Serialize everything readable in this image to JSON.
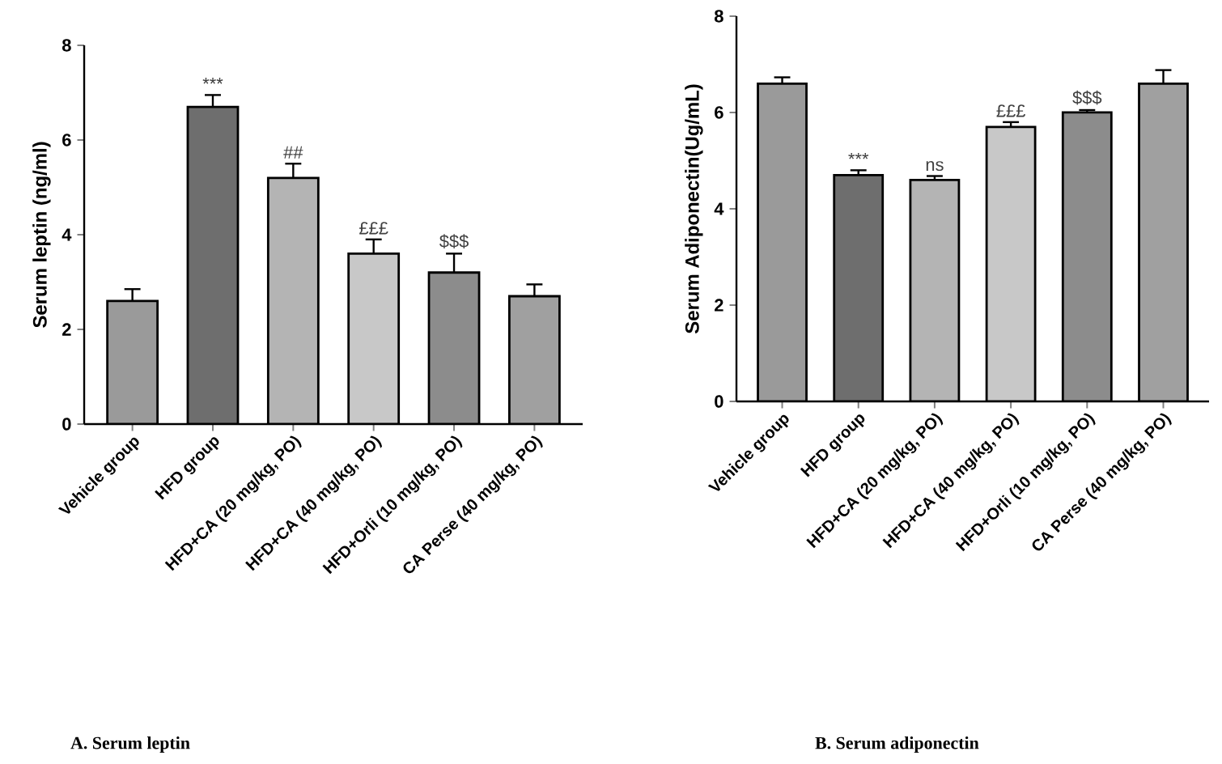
{
  "chart_data": [
    {
      "type": "bar",
      "ylabel": "Serum leptin (ng/ml)",
      "categories": [
        "Vehicle group",
        "HFD group",
        "HFD+CA (20 mg/kg, PO)",
        "HFD+CA (40 mg/kg, PO)",
        "HFD+Orli (10 mg/kg, PO)",
        "CA Perse (40 mg/kg, PO)"
      ],
      "values": [
        2.6,
        6.7,
        5.2,
        3.6,
        3.2,
        2.7
      ],
      "errors": [
        0.25,
        0.25,
        0.3,
        0.3,
        0.4,
        0.25
      ],
      "colors": [
        "#9a9a9a",
        "#6e6e6e",
        "#b4b4b4",
        "#c8c8c8",
        "#8c8c8c",
        "#a0a0a0"
      ],
      "ylim": [
        0,
        8
      ],
      "yticks": [
        0,
        2,
        4,
        6,
        8
      ],
      "grid": false,
      "annotations": [
        {
          "text": "***",
          "x": "HFD group",
          "y": 6.7
        },
        {
          "text": "##",
          "x": "HFD+CA (20 mg/kg, PO)",
          "y": 5.2
        },
        {
          "text": "£££",
          "x": "HFD+CA (40 mg/kg, PO)",
          "y": 3.6
        },
        {
          "text": "$$$",
          "x": "HFD+Orli (10 mg/kg, PO)",
          "y": 3.2
        },
        "A.  Serum leptin"
      ]
    },
    {
      "type": "bar",
      "ylabel": "Serum Adiponectin(Ug/mL)",
      "categories": [
        "Vehicle group",
        "HFD group",
        "HFD+CA (20 mg/kg, PO)",
        "HFD+CA (40 mg/kg, PO)",
        "HFD+Orli (10 mg/kg, PO)",
        "CA Perse (40 mg/kg, PO)"
      ],
      "values": [
        6.6,
        4.7,
        4.6,
        5.7,
        6.0,
        6.6
      ],
      "errors": [
        0.13,
        0.1,
        0.08,
        0.1,
        0.05,
        0.28
      ],
      "colors": [
        "#9a9a9a",
        "#6e6e6e",
        "#b4b4b4",
        "#c8c8c8",
        "#8c8c8c",
        "#a0a0a0"
      ],
      "ylim": [
        0,
        8
      ],
      "yticks": [
        0,
        2,
        4,
        6,
        8
      ],
      "grid": false,
      "annotations": [
        {
          "text": "***",
          "x": "HFD group",
          "y": 4.7
        },
        {
          "text": "ns",
          "x": "HFD+CA (20 mg/kg, PO)",
          "y": 4.6
        },
        {
          "text": "£££",
          "x": "HFD+CA (40 mg/kg, PO)",
          "y": 5.7
        },
        {
          "text": "$$$",
          "x": "HFD+Orli (10 mg/kg, PO)",
          "y": 6.0
        },
        "B. Serum adiponectin"
      ]
    }
  ]
}
